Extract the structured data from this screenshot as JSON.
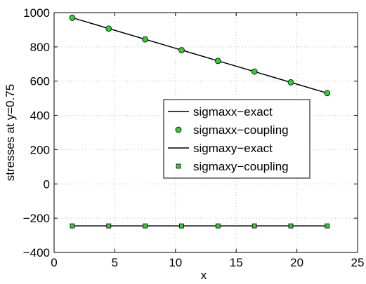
{
  "chart_data": {
    "type": "line",
    "title": "",
    "xlabel": "x",
    "ylabel": "stresses at y=0.75",
    "xlim": [
      0,
      25
    ],
    "ylim": [
      -400,
      1000
    ],
    "xticks": [
      0,
      5,
      10,
      15,
      20,
      25
    ],
    "yticks": [
      -400,
      -200,
      0,
      200,
      400,
      600,
      800,
      1000
    ],
    "xtick_labels": [
      "0",
      "5",
      "10",
      "15",
      "20",
      "25"
    ],
    "ytick_labels": [
      "−400",
      "−200",
      "0",
      "200",
      "400",
      "600",
      "800",
      "1000"
    ],
    "grid": true,
    "legend_position": "center-right",
    "series": [
      {
        "name": "sigmaxx−exact",
        "kind": "line",
        "color": "#000000",
        "x": [
          1.5,
          22.5
        ],
        "y": [
          970,
          530
        ]
      },
      {
        "name": "sigmaxx−coupling",
        "kind": "marker",
        "marker": "circle",
        "color": "#33cc33",
        "x": [
          1.5,
          4.5,
          7.5,
          10.5,
          13.5,
          16.5,
          19.5,
          22.5
        ],
        "y": [
          970,
          907,
          844,
          781,
          718,
          656,
          593,
          530
        ]
      },
      {
        "name": "sigmaxy−exact",
        "kind": "line",
        "color": "#000000",
        "x": [
          1.5,
          22.5
        ],
        "y": [
          -245,
          -245
        ]
      },
      {
        "name": "sigmaxy−coupling",
        "kind": "marker",
        "marker": "square",
        "color": "#33cc33",
        "x": [
          1.5,
          4.5,
          7.5,
          10.5,
          13.5,
          16.5,
          19.5,
          22.5
        ],
        "y": [
          -245,
          -245,
          -245,
          -245,
          -245,
          -245,
          -245,
          -245
        ]
      }
    ]
  }
}
